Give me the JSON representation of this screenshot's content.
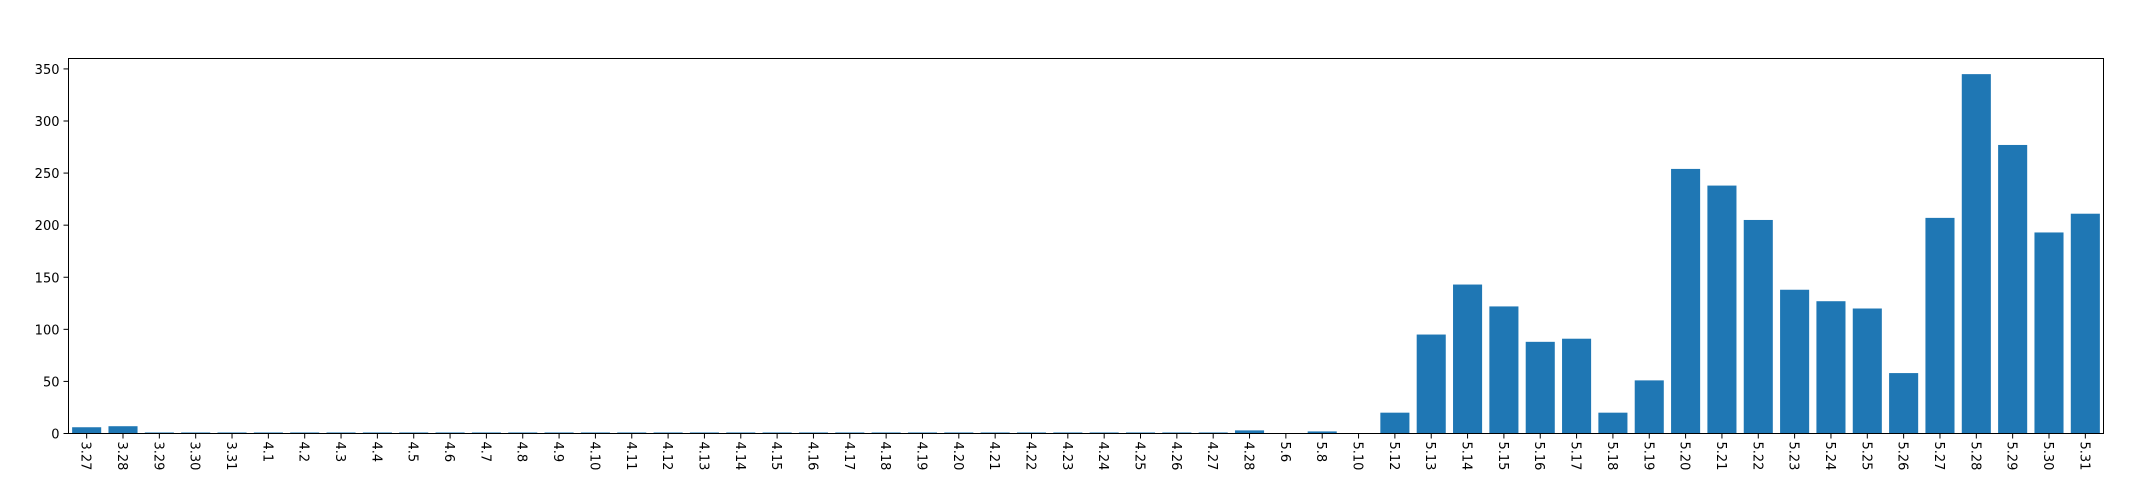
{
  "chart_data": {
    "type": "bar",
    "title": "",
    "xlabel": "",
    "ylabel": "",
    "ylim": [
      0,
      360
    ],
    "yticks": [
      0,
      50,
      100,
      150,
      200,
      250,
      300,
      350
    ],
    "grid": false,
    "bar_color": "#1f77b4",
    "categories": [
      "3.27",
      "3.28",
      "3.29",
      "3.30",
      "3.31",
      "4.1",
      "4.2",
      "4.3",
      "4.4",
      "4.5",
      "4.6",
      "4.7",
      "4.8",
      "4.9",
      "4.10",
      "4.11",
      "4.12",
      "4.13",
      "4.14",
      "4.15",
      "4.16",
      "4.17",
      "4.18",
      "4.19",
      "4.20",
      "4.21",
      "4.22",
      "4.23",
      "4.24",
      "4.25",
      "4.26",
      "4.27",
      "4.28",
      "5.6",
      "5.8",
      "5.10",
      "5.12",
      "5.13",
      "5.14",
      "5.15",
      "5.16",
      "5.17",
      "5.18",
      "5.19",
      "5.20",
      "5.21",
      "5.22",
      "5.23",
      "5.24",
      "5.25",
      "5.26",
      "5.27",
      "5.28",
      "5.29",
      "5.30",
      "5.31"
    ],
    "values": [
      6,
      7,
      1,
      1,
      1,
      1,
      1,
      1,
      1,
      1,
      1,
      1,
      1,
      1,
      1,
      1,
      1,
      1,
      1,
      1,
      1,
      1,
      1,
      1,
      1,
      1,
      1,
      1,
      1,
      1,
      1,
      1,
      3,
      0,
      2,
      0,
      20,
      95,
      143,
      122,
      88,
      91,
      20,
      51,
      254,
      238,
      205,
      138,
      127,
      120,
      58,
      207,
      345,
      277,
      193,
      211
    ]
  }
}
